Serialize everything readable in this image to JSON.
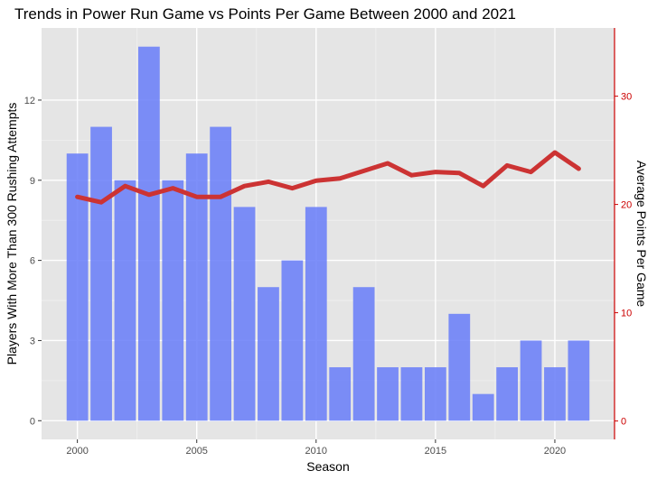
{
  "chart_data": {
    "type": "bar+line",
    "title": "Trends in Power Run Game vs Points Per Game Between 2000 and 2021",
    "xlabel": "Season",
    "ylabel_left": "Players With More Than 300 Rushing Attempts",
    "ylabel_right": "Average Points Per Game",
    "x": [
      2000,
      2001,
      2002,
      2003,
      2004,
      2005,
      2006,
      2007,
      2008,
      2009,
      2010,
      2011,
      2012,
      2013,
      2014,
      2015,
      2016,
      2017,
      2018,
      2019,
      2020,
      2021
    ],
    "series": [
      {
        "name": "Players With More Than 300 Rushing Attempts",
        "kind": "bar",
        "axis": "left",
        "color": "#6b7ff8",
        "values": [
          10,
          11,
          9,
          14,
          9,
          10,
          11,
          8,
          5,
          6,
          8,
          2,
          5,
          2,
          2,
          2,
          4,
          1,
          2,
          3,
          2,
          3
        ]
      },
      {
        "name": "Average Points Per Game",
        "kind": "line",
        "axis": "right",
        "color": "#cc3333",
        "values": [
          20.7,
          20.2,
          21.7,
          20.9,
          21.5,
          20.7,
          20.7,
          21.7,
          22.1,
          21.5,
          22.2,
          22.4,
          23.1,
          23.8,
          22.7,
          23.0,
          22.9,
          21.7,
          23.6,
          23.0,
          24.8,
          23.3
        ]
      }
    ],
    "xticks": [
      "2000",
      "2005",
      "2010",
      "2015",
      "2020"
    ],
    "xlim": [
      1998.5,
      2022.5
    ],
    "left_yticks": [
      "0",
      "3",
      "6",
      "9",
      "12"
    ],
    "left_ylim": [
      -0.7,
      14.7
    ],
    "right_yticks": [
      "0",
      "10",
      "20",
      "30"
    ],
    "right_ylim": [
      -1.7,
      36.3
    ],
    "grid": true,
    "colors": {
      "panel_background": "#e5e5e5",
      "grid_major": "#ffffff",
      "grid_minor": "#f0f0f0",
      "right_axis": "#cc0000"
    }
  }
}
